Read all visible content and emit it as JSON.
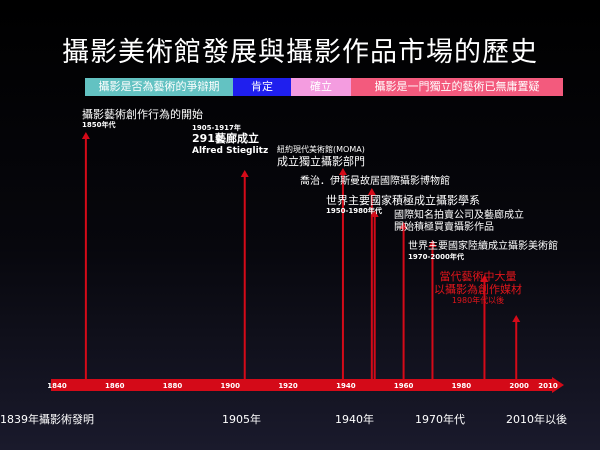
{
  "title": "攝影美術館發展與攝影作品市場的歷史",
  "colors": {
    "phase_debate": "#63c2c2",
    "phase_affirm": "#1f1fee",
    "phase_establish": "#f49ce0",
    "phase_independent": "#f35a7d",
    "timeline": "#d40a18",
    "accent_red": "#e0151b"
  },
  "phases": [
    {
      "label": "攝影是否為藝術的爭辯期",
      "color": "#63c2c2"
    },
    {
      "label": "肯定",
      "color": "#1f1fee"
    },
    {
      "label": "確立",
      "color": "#f49ce0"
    },
    {
      "label": "攝影是一門獨立的藝術已無庸置疑",
      "color": "#f35a7d"
    }
  ],
  "axis": {
    "start": 1840,
    "end": 2010,
    "ticks": [
      "1840",
      "1860",
      "1880",
      "1900",
      "1920",
      "1940",
      "1960",
      "1980",
      "2000",
      "2010"
    ]
  },
  "events": [
    {
      "year": 1850,
      "arrow_top": 132,
      "lines": [
        {
          "text": "攝影藝術創作行為的開始",
          "size": "f11"
        },
        {
          "text": "1850年代",
          "size": "f7",
          "bold": true
        }
      ]
    },
    {
      "year": 1905,
      "arrow_top": 170,
      "lines": [
        {
          "text": "1905-1917年",
          "size": "f7",
          "bold": true
        },
        {
          "text": "291藝廊成立",
          "size": "f11",
          "bold": true
        },
        {
          "text": "Alfred Stieglitz",
          "size": "f9",
          "bold": true
        }
      ]
    },
    {
      "year": 1939,
      "arrow_top": 168,
      "lines": [
        {
          "text": "紐約現代美術館(MOMA)",
          "size": "f8"
        },
        {
          "text": "成立獨立攝影部門",
          "size": "f11"
        }
      ]
    },
    {
      "year": 1949,
      "arrow_top": 188,
      "lines": [
        {
          "text": "喬治．伊斯曼故居國際攝影博物館",
          "size": "f10"
        }
      ]
    },
    {
      "year": 1950,
      "arrow_top": 210,
      "lines": [
        {
          "text": "世界主要國家積極成立攝影學系",
          "size": "f11"
        },
        {
          "text": "1950-1980年代",
          "size": "f7",
          "bold": true
        }
      ]
    },
    {
      "year": 1960,
      "arrow_top": 222,
      "lines": [
        {
          "text": "國際知名拍賣公司及藝廊成立",
          "size": "f10"
        },
        {
          "text": "開始積極買賣攝影作品",
          "size": "f10"
        }
      ]
    },
    {
      "year": 1970,
      "arrow_top": 240,
      "lines": [
        {
          "text": "世界主要國家陸續成立攝影美術館",
          "size": "f10"
        },
        {
          "text": "1970-2000年代",
          "size": "f7",
          "bold": true
        }
      ]
    },
    {
      "year": 1988,
      "arrow_top": 275,
      "lines": [
        {
          "text": "當代藝術中大量",
          "size": "f11",
          "red": true
        },
        {
          "text": "以攝影為創作媒材",
          "size": "f11",
          "red": true
        },
        {
          "text": "1980年代以後",
          "size": "f8",
          "red": true
        }
      ]
    },
    {
      "year": 1999,
      "arrow_top": 315,
      "lines": []
    }
  ],
  "bottom_labels": [
    {
      "text": "1839年攝影術發明",
      "year": 1839
    },
    {
      "text": "1905年",
      "year": 1905
    },
    {
      "text": "1940年",
      "year": 1940
    },
    {
      "text": "1970年代",
      "year": 1970
    },
    {
      "text": "2010年以後",
      "year": 2010
    }
  ]
}
